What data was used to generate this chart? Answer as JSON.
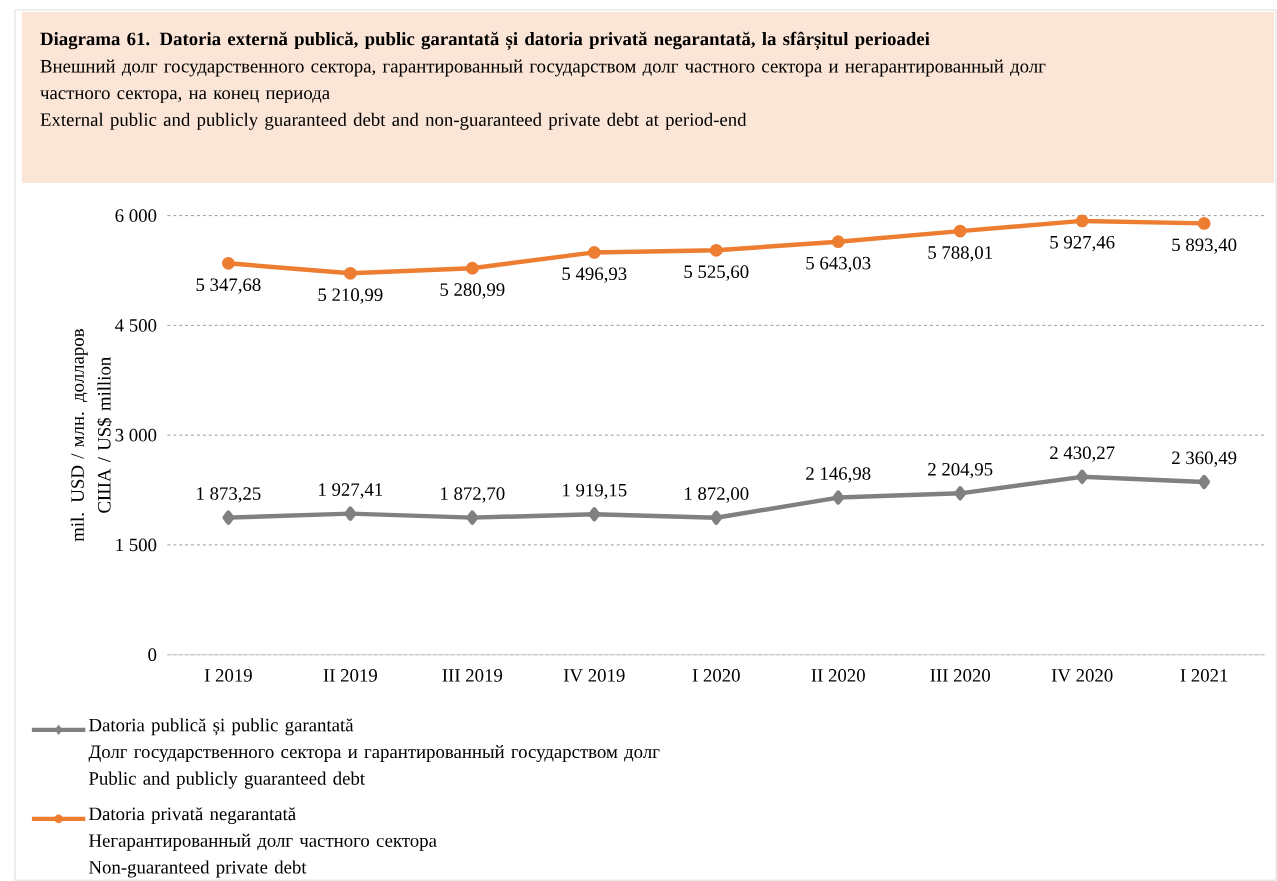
{
  "chart_data": {
    "type": "line",
    "title": "Diagrama 61. Datoria externă publică, public garantată și datoria privată negarantată, la sfârșitul perioadei",
    "subtitle": "Внешний долг государственного сектора, гарантированный государством долг частного сектора и негарантированный долг частного сектора, на конец периода\nExternal public and publicly guaranteed debt and non-guaranteed private debt at period-end",
    "ylabel": "mil. USD / млн. долларов США / US$ million",
    "categories": [
      "I 2019",
      "II 2019",
      "III 2019",
      "IV 2019",
      "I 2020",
      "II 2020",
      "III 2020",
      "IV 2020",
      "I 2021"
    ],
    "series": [
      {
        "name": "Datoria publică și public garantată\nДолг государственного сектора и гарантированный государством долг\nPublic and publicly guaranteed debt",
        "color": "#808080",
        "marker": "diamond",
        "values": [
          1873.25,
          1927.41,
          1872.7,
          1919.15,
          1872.0,
          2146.98,
          2204.95,
          2430.27,
          2360.49
        ],
        "value_labels": [
          "1 873,25",
          "1 927,41",
          "1 872,70",
          "1 919,15",
          "1 872,00",
          "2 146,98",
          "2 204,95",
          "2 430,27",
          "2 360,49"
        ]
      },
      {
        "name": "Datoria privată negarantată\nНегарантированный долг частного сектора\nNon-guaranteed private debt",
        "color": "#ed7d31",
        "marker": "circle",
        "values": [
          5347.68,
          5210.99,
          5280.99,
          5496.93,
          5525.6,
          5643.03,
          5788.01,
          5927.46,
          5893.4
        ],
        "value_labels": [
          "5 347,68",
          "5 210,99",
          "5 280,99",
          "5 496,93",
          "5 525,60",
          "5 643,03",
          "5 788,01",
          "5 927,46",
          "5 893,40"
        ]
      }
    ],
    "ylim": [
      0,
      6000
    ],
    "yticks": [
      {
        "value": 0,
        "label": "0"
      },
      {
        "value": 1500,
        "label": "1 500"
      },
      {
        "value": 3000,
        "label": "3 000"
      },
      {
        "value": 4500,
        "label": "4 500"
      },
      {
        "value": 6000,
        "label": "6 000"
      }
    ],
    "grid": "y",
    "legend": "bottom"
  }
}
